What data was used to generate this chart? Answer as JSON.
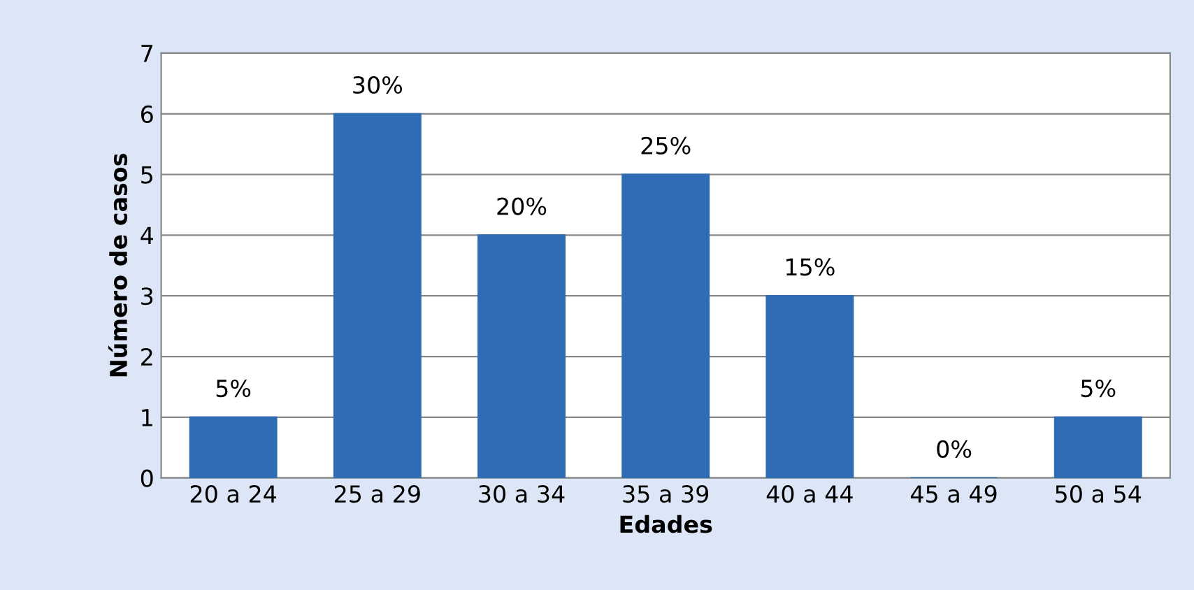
{
  "chart_data": {
    "type": "bar",
    "xlabel": "Edades",
    "ylabel": "Número de casos",
    "categories": [
      "20 a 24",
      "25 a 29",
      "30 a 34",
      "35 a 39",
      "40 a 44",
      "45 a 49",
      "50 a 54"
    ],
    "values": [
      1,
      6,
      4,
      5,
      3,
      0,
      1
    ],
    "annotations": [
      {
        "text": "5%",
        "x": "20 a 24",
        "y": 1
      },
      {
        "text": "30%",
        "x": "25 a 29",
        "y": 6
      },
      {
        "text": "20%",
        "x": "30 a 34",
        "y": 4
      },
      {
        "text": "25%",
        "x": "35 a 39",
        "y": 5
      },
      {
        "text": "15%",
        "x": "40 a 44",
        "y": 3
      },
      {
        "text": "0%",
        "x": "45 a 49",
        "y": 0
      },
      {
        "text": "5%",
        "x": "50 a 54",
        "y": 1
      }
    ],
    "color": "#2e6db5",
    "ylim": [
      0,
      7
    ],
    "yticks": [
      0,
      1,
      2,
      3,
      4,
      5,
      6,
      7
    ],
    "grid": "y"
  }
}
